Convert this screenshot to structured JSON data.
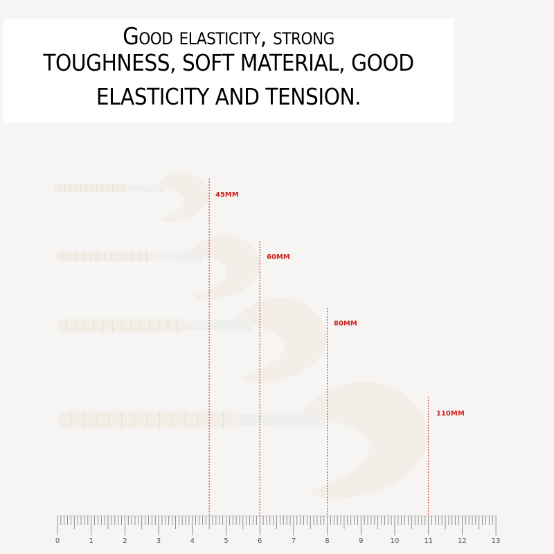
{
  "headline": {
    "line1": "Good elasticity, strong",
    "line2": "TOUGHNESS, SOFT MATERIAL, GOOD",
    "line3": "ELASTICITY AND TENSION."
  },
  "lures": [
    {
      "size_label": "45MM",
      "length_cm": 4.5
    },
    {
      "size_label": "60MM",
      "length_cm": 6
    },
    {
      "size_label": "80MM",
      "length_cm": 8
    },
    {
      "size_label": "110MM",
      "length_cm": 11
    }
  ],
  "ruler": {
    "tick_labels": [
      "0",
      "1",
      "2",
      "3",
      "4",
      "5",
      "6",
      "7",
      "8",
      "9",
      "10",
      "11",
      "12",
      "13"
    ]
  },
  "colors": {
    "marker": "#d0201c",
    "lure": "#f3eee8",
    "background": "#f6f5f4"
  }
}
